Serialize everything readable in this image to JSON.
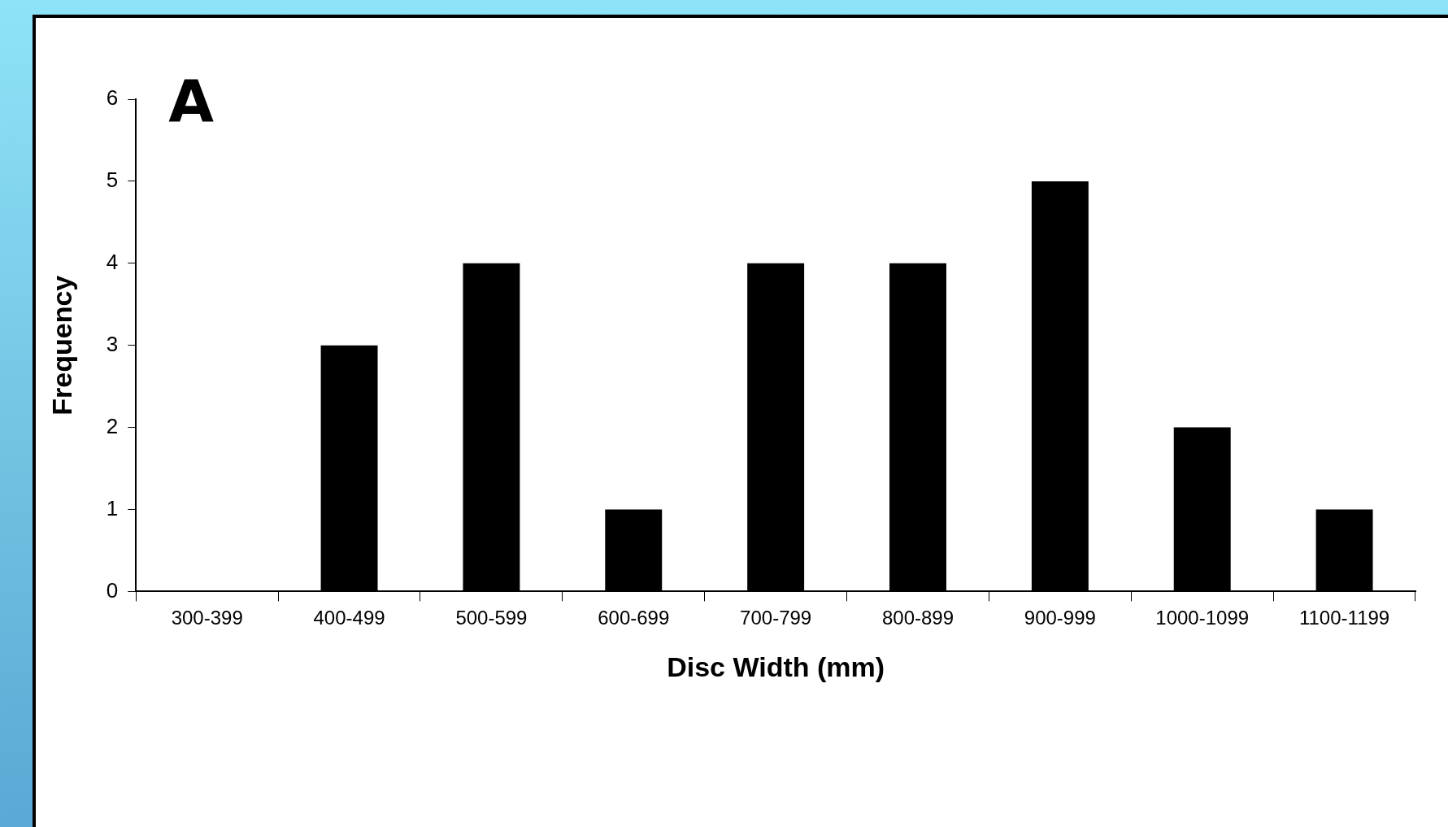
{
  "chart_data": {
    "type": "bar",
    "xlabel": "Disc Width (mm)",
    "ylabel": "Frequency",
    "annotations": [
      "A"
    ],
    "categories": [
      "300-399",
      "400-499",
      "500-599",
      "600-699",
      "700-799",
      "800-899",
      "900-999",
      "1000-1099",
      "1100-1199"
    ],
    "values": [
      0,
      3,
      4,
      1,
      4,
      4,
      5,
      2,
      1
    ],
    "color": "#000000",
    "ylim": [
      0,
      6
    ],
    "yticks": [
      0,
      1,
      2,
      3,
      4,
      5,
      6
    ],
    "grid": false,
    "legend": false
  }
}
